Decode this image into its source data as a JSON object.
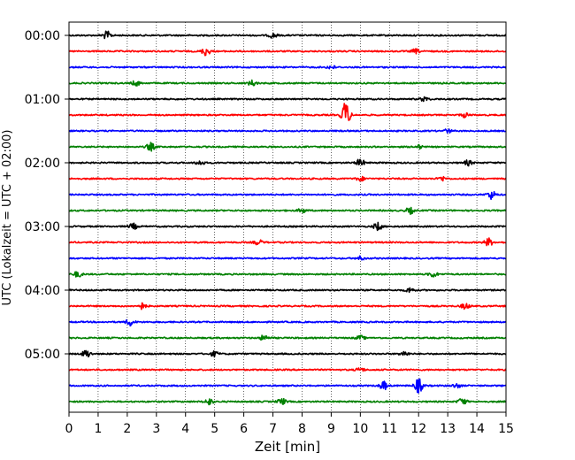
{
  "chart_data": {
    "type": "line",
    "title": "",
    "xlabel": "Zeit  [min]",
    "ylabel": "UTC (Lokalzeit = UTC + 02:00)",
    "xlim": [
      0,
      15
    ],
    "x_ticks": [
      "0",
      "1",
      "2",
      "3",
      "4",
      "5",
      "6",
      "7",
      "8",
      "9",
      "10",
      "11",
      "12",
      "13",
      "14",
      "15"
    ],
    "y_ticks": [
      "00:00",
      "01:00",
      "02:00",
      "03:00",
      "04:00",
      "05:00"
    ],
    "grid": "vertical dotted",
    "trace_minutes": 15,
    "trace_count": 24,
    "trace_colors": [
      "#000000",
      "#ff0000",
      "#0000ff",
      "#008000"
    ],
    "series": [
      {
        "start": "00:00",
        "color": "#000000",
        "events": [
          {
            "minute": 1.3,
            "amplitude": 0.55
          },
          {
            "minute": 7.0,
            "amplitude": 0.35
          }
        ]
      },
      {
        "start": "00:15",
        "color": "#ff0000",
        "events": [
          {
            "minute": 4.7,
            "amplitude": 0.6
          },
          {
            "minute": 11.9,
            "amplitude": 0.3
          }
        ]
      },
      {
        "start": "00:30",
        "color": "#0000ff",
        "events": [
          {
            "minute": 9.0,
            "amplitude": 0.25
          }
        ]
      },
      {
        "start": "00:45",
        "color": "#008000",
        "events": [
          {
            "minute": 2.3,
            "amplitude": 0.35
          },
          {
            "minute": 6.3,
            "amplitude": 0.4
          }
        ]
      },
      {
        "start": "01:00",
        "color": "#000000",
        "events": [
          {
            "minute": 12.2,
            "amplitude": 0.3
          }
        ]
      },
      {
        "start": "01:15",
        "color": "#ff0000",
        "events": [
          {
            "minute": 9.5,
            "amplitude": 1.9
          },
          {
            "minute": 13.6,
            "amplitude": 0.3
          }
        ]
      },
      {
        "start": "01:30",
        "color": "#0000ff",
        "events": [
          {
            "minute": 13.0,
            "amplitude": 0.25
          }
        ]
      },
      {
        "start": "01:45",
        "color": "#008000",
        "events": [
          {
            "minute": 2.8,
            "amplitude": 0.55
          },
          {
            "minute": 12.0,
            "amplitude": 0.25
          }
        ]
      },
      {
        "start": "02:00",
        "color": "#000000",
        "events": [
          {
            "minute": 4.5,
            "amplitude": 0.35
          },
          {
            "minute": 10.0,
            "amplitude": 0.5
          },
          {
            "minute": 13.7,
            "amplitude": 0.35
          }
        ]
      },
      {
        "start": "02:15",
        "color": "#ff0000",
        "events": [
          {
            "minute": 10.0,
            "amplitude": 0.3
          },
          {
            "minute": 12.8,
            "amplitude": 0.3
          }
        ]
      },
      {
        "start": "02:30",
        "color": "#0000ff",
        "events": [
          {
            "minute": 14.5,
            "amplitude": 0.6
          }
        ]
      },
      {
        "start": "02:45",
        "color": "#008000",
        "events": [
          {
            "minute": 8.0,
            "amplitude": 0.3
          },
          {
            "minute": 11.7,
            "amplitude": 0.45
          }
        ]
      },
      {
        "start": "03:00",
        "color": "#000000",
        "events": [
          {
            "minute": 2.2,
            "amplitude": 0.4
          },
          {
            "minute": 10.6,
            "amplitude": 0.55
          }
        ]
      },
      {
        "start": "03:15",
        "color": "#ff0000",
        "events": [
          {
            "minute": 6.5,
            "amplitude": 0.35
          },
          {
            "minute": 14.4,
            "amplitude": 0.55
          }
        ]
      },
      {
        "start": "03:30",
        "color": "#0000ff",
        "events": [
          {
            "minute": 10.0,
            "amplitude": 0.25
          }
        ]
      },
      {
        "start": "03:45",
        "color": "#008000",
        "events": [
          {
            "minute": 0.3,
            "amplitude": 0.4
          },
          {
            "minute": 12.5,
            "amplitude": 0.4
          }
        ]
      },
      {
        "start": "04:00",
        "color": "#000000",
        "events": [
          {
            "minute": 11.7,
            "amplitude": 0.35
          }
        ]
      },
      {
        "start": "04:15",
        "color": "#ff0000",
        "events": [
          {
            "minute": 2.5,
            "amplitude": 0.45
          },
          {
            "minute": 13.6,
            "amplitude": 0.4
          }
        ]
      },
      {
        "start": "04:30",
        "color": "#0000ff",
        "events": [
          {
            "minute": 2.1,
            "amplitude": 0.5
          }
        ]
      },
      {
        "start": "04:45",
        "color": "#008000",
        "events": [
          {
            "minute": 6.7,
            "amplitude": 0.4
          },
          {
            "minute": 10.0,
            "amplitude": 0.3
          }
        ]
      },
      {
        "start": "05:00",
        "color": "#000000",
        "events": [
          {
            "minute": 0.6,
            "amplitude": 0.55
          },
          {
            "minute": 5.0,
            "amplitude": 0.35
          },
          {
            "minute": 11.5,
            "amplitude": 0.35
          }
        ]
      },
      {
        "start": "05:15",
        "color": "#ff0000",
        "events": [
          {
            "minute": 10.0,
            "amplitude": 0.3
          }
        ]
      },
      {
        "start": "05:30",
        "color": "#0000ff",
        "events": [
          {
            "minute": 10.8,
            "amplitude": 0.6
          },
          {
            "minute": 12.0,
            "amplitude": 1.0
          },
          {
            "minute": 13.3,
            "amplitude": 0.3
          }
        ]
      },
      {
        "start": "05:45",
        "color": "#008000",
        "events": [
          {
            "minute": 4.8,
            "amplitude": 0.45
          },
          {
            "minute": 7.3,
            "amplitude": 0.45
          },
          {
            "minute": 13.5,
            "amplitude": 0.5
          }
        ]
      }
    ]
  }
}
